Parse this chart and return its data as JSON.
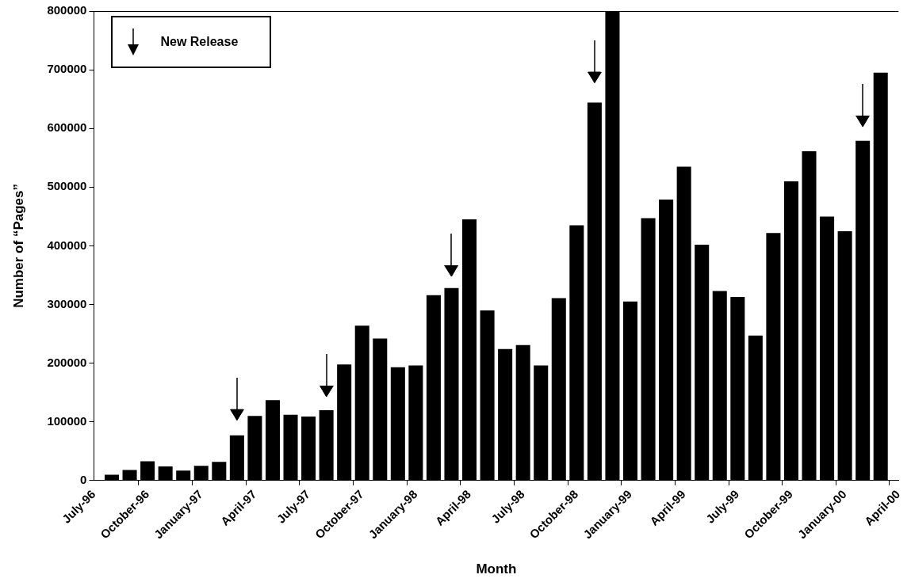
{
  "chart_data": {
    "type": "bar",
    "xlabel": "Month",
    "ylabel": "Number of “Pages”",
    "categories": [
      "July-96",
      null,
      null,
      "October-96",
      null,
      null,
      "January-97",
      null,
      null,
      "April-97",
      null,
      null,
      "July-97",
      null,
      null,
      "October-97",
      null,
      null,
      "January-98",
      null,
      null,
      "April-98",
      null,
      null,
      "July-98",
      null,
      null,
      "October-98",
      null,
      null,
      "January-99",
      null,
      null,
      "April-99",
      null,
      null,
      "July-99",
      null,
      null,
      "October-99",
      null,
      null,
      "January-00",
      null,
      null,
      "April-00"
    ],
    "series": [
      {
        "color": "#000000",
        "values": [
          null,
          10000,
          18000,
          33000,
          24000,
          17000,
          25000,
          32000,
          77000,
          110000,
          137000,
          112000,
          109000,
          120000,
          198000,
          264000,
          242000,
          193000,
          196000,
          316000,
          328000,
          445000,
          290000,
          224000,
          231000,
          196000,
          311000,
          435000,
          644000,
          800000,
          305000,
          447000,
          479000,
          535000,
          402000,
          323000,
          313000,
          247000,
          422000,
          510000,
          561000,
          450000,
          425000,
          579000,
          695000,
          null
        ]
      },
      {
        "type": "scatter",
        "name": "New Release",
        "color": "#000000",
        "marker": "triangle",
        "values": [
          null,
          null,
          null,
          null,
          null,
          null,
          null,
          null,
          115000,
          null,
          null,
          null,
          null,
          155000,
          null,
          null,
          null,
          null,
          null,
          null,
          360000,
          null,
          null,
          null,
          null,
          null,
          null,
          null,
          690000,
          null,
          null,
          null,
          null,
          null,
          null,
          null,
          null,
          null,
          null,
          null,
          null,
          null,
          null,
          615000,
          null,
          null
        ]
      }
    ],
    "ylim": [
      0,
      800000
    ],
    "yticks": [
      0,
      100000,
      200000,
      300000,
      400000,
      500000,
      600000,
      700000,
      800000
    ],
    "grid": false,
    "legend": "top left"
  }
}
